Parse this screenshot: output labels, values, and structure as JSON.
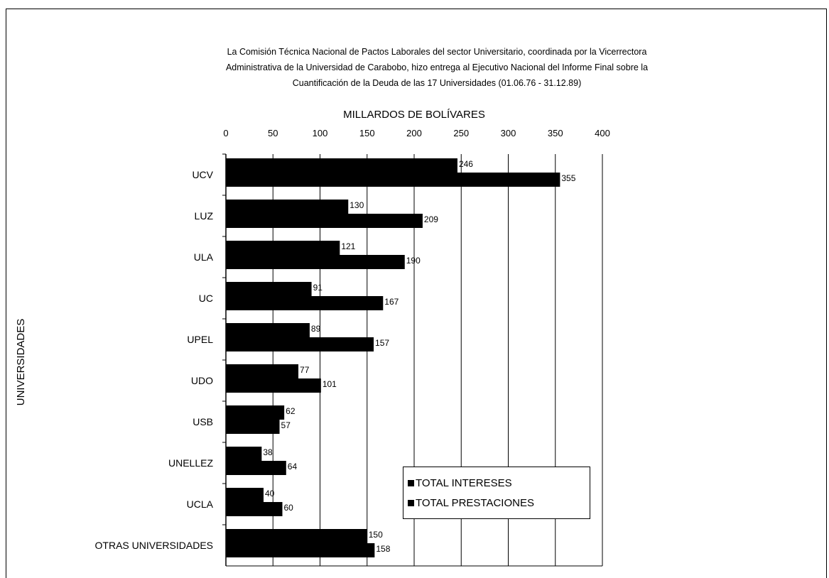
{
  "title_lines": [
    "La Comisión Técnica Nacional de Pactos Laborales del sector Universitario, coordinada por la Vicerrectora",
    "Administrativa de la Universidad de Carabobo, hizo entrega al Ejecutivo Nacional del Informe Final sobre la",
    "Cuantificación de la Deuda de las 17 Universidades (01.06.76 - 31.12.89)"
  ],
  "chart_data": {
    "type": "bar",
    "orientation": "horizontal",
    "title": "La Comisión Técnica Nacional de Pactos Laborales del sector Universitario, coordinada por la Vicerrectora Administrativa de la Universidad de Carabobo, hizo entrega al Ejecutivo Nacional del Informe Final sobre la Cuantificación de la Deuda de las 17 Universidades (01.06.76 - 31.12.89)",
    "xlabel": "MILLARDOS DE BOLÍVARES",
    "ylabel": "UNIVERSIDADES",
    "xlim": [
      0,
      400
    ],
    "xticks": [
      "0",
      "50",
      "100",
      "150",
      "200",
      "250",
      "300",
      "350",
      "400"
    ],
    "xaxis_position": "top",
    "grid": "vertical",
    "legend_position": "bottom-right",
    "categories": [
      "UCV",
      "LUZ",
      "ULA",
      "UC",
      "UPEL",
      "UDO",
      "USB",
      "UNELLEZ",
      "UCLA",
      "OTRAS UNIVERSIDADES"
    ],
    "series": [
      {
        "name": "TOTAL INTERESES",
        "color": "#000000",
        "values": [
          246,
          130,
          121,
          91,
          89,
          77,
          62,
          38,
          40,
          150
        ]
      },
      {
        "name": "TOTAL PRESTACIONES",
        "color": "#000000",
        "values": [
          355,
          209,
          190,
          167,
          157,
          101,
          57,
          64,
          60,
          158
        ]
      }
    ]
  }
}
